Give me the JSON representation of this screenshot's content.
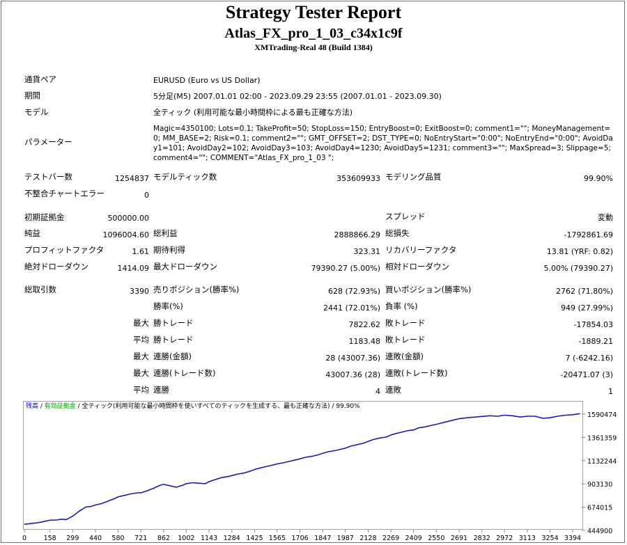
{
  "header": {
    "title": "Strategy Tester Report",
    "expert": "Atlas_FX_pro_1_03_c34x1c9f",
    "server": "XMTrading-Real 48 (Build 1384)"
  },
  "info": {
    "symbol_label": "通貨ペア",
    "symbol": "EURUSD (Euro vs US Dollar)",
    "period_label": "期間",
    "period": "5分足(M5) 2007.01.01 02:00 - 2023.09.29 23:55 (2007.01.01 - 2023.09.30)",
    "model_label": "モデル",
    "model": "全ティック (利用可能な最小時間枠による最も正確な方法)",
    "params_label": "パラメーター",
    "params": "Magic=4350100; Lots=0.1; TakeProfit=50; StopLoss=150; EntryBoost=0; ExitBoost=0; comment1=\"\"; MoneyManagement=0; MM_BASE=2; Risk=0.1; comment2=\"\"; GMT_OFFSET=2; DST_TYPE=0; NoEntryStart=\"0:00\"; NoEntryEnd=\"0:00\"; AvoidDay1=101; AvoidDay2=102; AvoidDay3=103; AvoidDay4=1230; AvoidDay5=1231; comment3=\"\"; MaxSpread=3; Slippage=5; comment4=\"\"; COMMENT=\"Atlas_FX_pro_1_03 \";"
  },
  "stats": {
    "bars_label": "テストバー数",
    "bars": "1254837",
    "ticks_label": "モデルティック数",
    "ticks": "353609933",
    "quality_label": "モデリング品質",
    "quality": "99.90%",
    "mismatch_label": "不整合チャートエラー",
    "mismatch": "0",
    "deposit_label": "初期証拠金",
    "deposit": "500000.00",
    "spread_label": "スプレッド",
    "spread": "変動",
    "net_label": "純益",
    "net": "1096004.60",
    "gross_profit_label": "総利益",
    "gross_profit": "2888866.29",
    "gross_loss_label": "総損失",
    "gross_loss": "-1792861.69",
    "pf_label": "プロフィットファクタ",
    "pf": "1.61",
    "expected_label": "期待利得",
    "expected": "323.31",
    "recovery_label": "リカバリーファクタ",
    "recovery": "13.81 (YRF: 0.82)",
    "abs_dd_label": "絶対ドローダウン",
    "abs_dd": "1414.09",
    "max_dd_label": "最大ドローダウン",
    "max_dd": "79390.27 (5.00%)",
    "rel_dd_label": "相対ドローダウン",
    "rel_dd": "5.00% (79390.27)",
    "total_trades_label": "総取引数",
    "total_trades": "3390",
    "short_label": "売りポジション(勝率%)",
    "short": "628 (72.93%)",
    "long_label": "買いポジション(勝率%)",
    "long": "2762 (71.80%)",
    "win_rate_label": "勝率(%)",
    "win_rate": "2441 (72.01%)",
    "loss_rate_label": "負率 (%)",
    "loss_rate": "949 (27.99%)",
    "max_label": "最大",
    "avg_label": "平均",
    "largest_win_label": "勝トレード",
    "largest_win": "7822.62",
    "largest_loss_label": "敗トレード",
    "largest_loss": "-17854.03",
    "avg_win_label": "勝トレード",
    "avg_win": "1183.48",
    "avg_loss_label": "敗トレード",
    "avg_loss": "-1889.21",
    "max_consec_wins_label": "連勝(金額)",
    "max_consec_wins": "28 (43007.36)",
    "max_consec_losses_label": "連敗(金額)",
    "max_consec_losses": "7 (-6242.16)",
    "max_consec_profit_label": "連勝(トレード数)",
    "max_consec_profit": "43007.36 (28)",
    "max_consec_loss_label": "連敗(トレード数)",
    "max_consec_loss": "-20471.07 (3)",
    "avg_consec_wins_label": "連勝",
    "avg_consec_wins": "4",
    "avg_consec_losses_label": "連敗",
    "avg_consec_losses": "1"
  },
  "chart_legend": {
    "balance": "残高",
    "sep1": " / ",
    "equity": "有効証拠金",
    "sep2": " / ",
    "model": "全ティック(利用可能な最小時間枠を使いすべてのティックを生成する、最も正確な方法)",
    "quality": " / 99.90%",
    "balance_color": "#0000ff",
    "equity_color": "#00a000",
    "line_color": "#1a1aa6"
  },
  "chart_data": {
    "type": "line",
    "title": "",
    "xlabel": "",
    "ylabel": "",
    "x_ticks": [
      "0",
      "158",
      "299",
      "440",
      "580",
      "721",
      "862",
      "1002",
      "1143",
      "1284",
      "1425",
      "1565",
      "1706",
      "1847",
      "1987",
      "2128",
      "2269",
      "2409",
      "2550",
      "2691",
      "2832",
      "2972",
      "3113",
      "3254",
      "3394"
    ],
    "y_ticks": [
      "1590474",
      "1361359",
      "1132244",
      "903130",
      "674015",
      "444900"
    ],
    "ylim": [
      444900,
      1590474
    ],
    "xlim": [
      0,
      3450
    ],
    "series": [
      {
        "x": [
          0,
          40,
          80,
          120,
          158,
          200,
          230,
          260,
          299,
          340,
          380,
          410,
          440,
          480,
          520,
          560,
          580,
          620,
          660,
          700,
          721,
          760,
          800,
          840,
          862,
          900,
          940,
          980,
          1002,
          1040,
          1080,
          1120,
          1143,
          1180,
          1220,
          1260,
          1284,
          1320,
          1360,
          1400,
          1425,
          1460,
          1500,
          1540,
          1565,
          1600,
          1640,
          1680,
          1706,
          1740,
          1780,
          1820,
          1847,
          1880,
          1920,
          1960,
          1987,
          2020,
          2060,
          2100,
          2128,
          2160,
          2200,
          2240,
          2269,
          2300,
          2340,
          2380,
          2409,
          2440,
          2480,
          2520,
          2550,
          2600,
          2650,
          2691,
          2740,
          2790,
          2832,
          2880,
          2930,
          2972,
          3020,
          3070,
          3113,
          3160,
          3210,
          3254,
          3300,
          3350,
          3394,
          3440
        ],
        "y": [
          505000,
          512000,
          520000,
          532000,
          545000,
          548000,
          555000,
          552000,
          585000,
          635000,
          675000,
          680000,
          695000,
          710000,
          735000,
          760000,
          775000,
          790000,
          805000,
          815000,
          815000,
          835000,
          860000,
          890000,
          898000,
          885000,
          870000,
          890000,
          905000,
          915000,
          910000,
          905000,
          925000,
          945000,
          965000,
          975000,
          985000,
          1000000,
          1010000,
          1030000,
          1045000,
          1060000,
          1075000,
          1090000,
          1100000,
          1110000,
          1125000,
          1140000,
          1150000,
          1165000,
          1175000,
          1190000,
          1205000,
          1220000,
          1230000,
          1245000,
          1255000,
          1275000,
          1290000,
          1305000,
          1322000,
          1340000,
          1355000,
          1365000,
          1385000,
          1400000,
          1415000,
          1430000,
          1435000,
          1455000,
          1465000,
          1480000,
          1490000,
          1510000,
          1530000,
          1545000,
          1555000,
          1562000,
          1568000,
          1575000,
          1570000,
          1580000,
          1575000,
          1562000,
          1570000,
          1570000,
          1550000,
          1555000,
          1570000,
          1580000,
          1585000,
          1595000
        ]
      }
    ]
  }
}
